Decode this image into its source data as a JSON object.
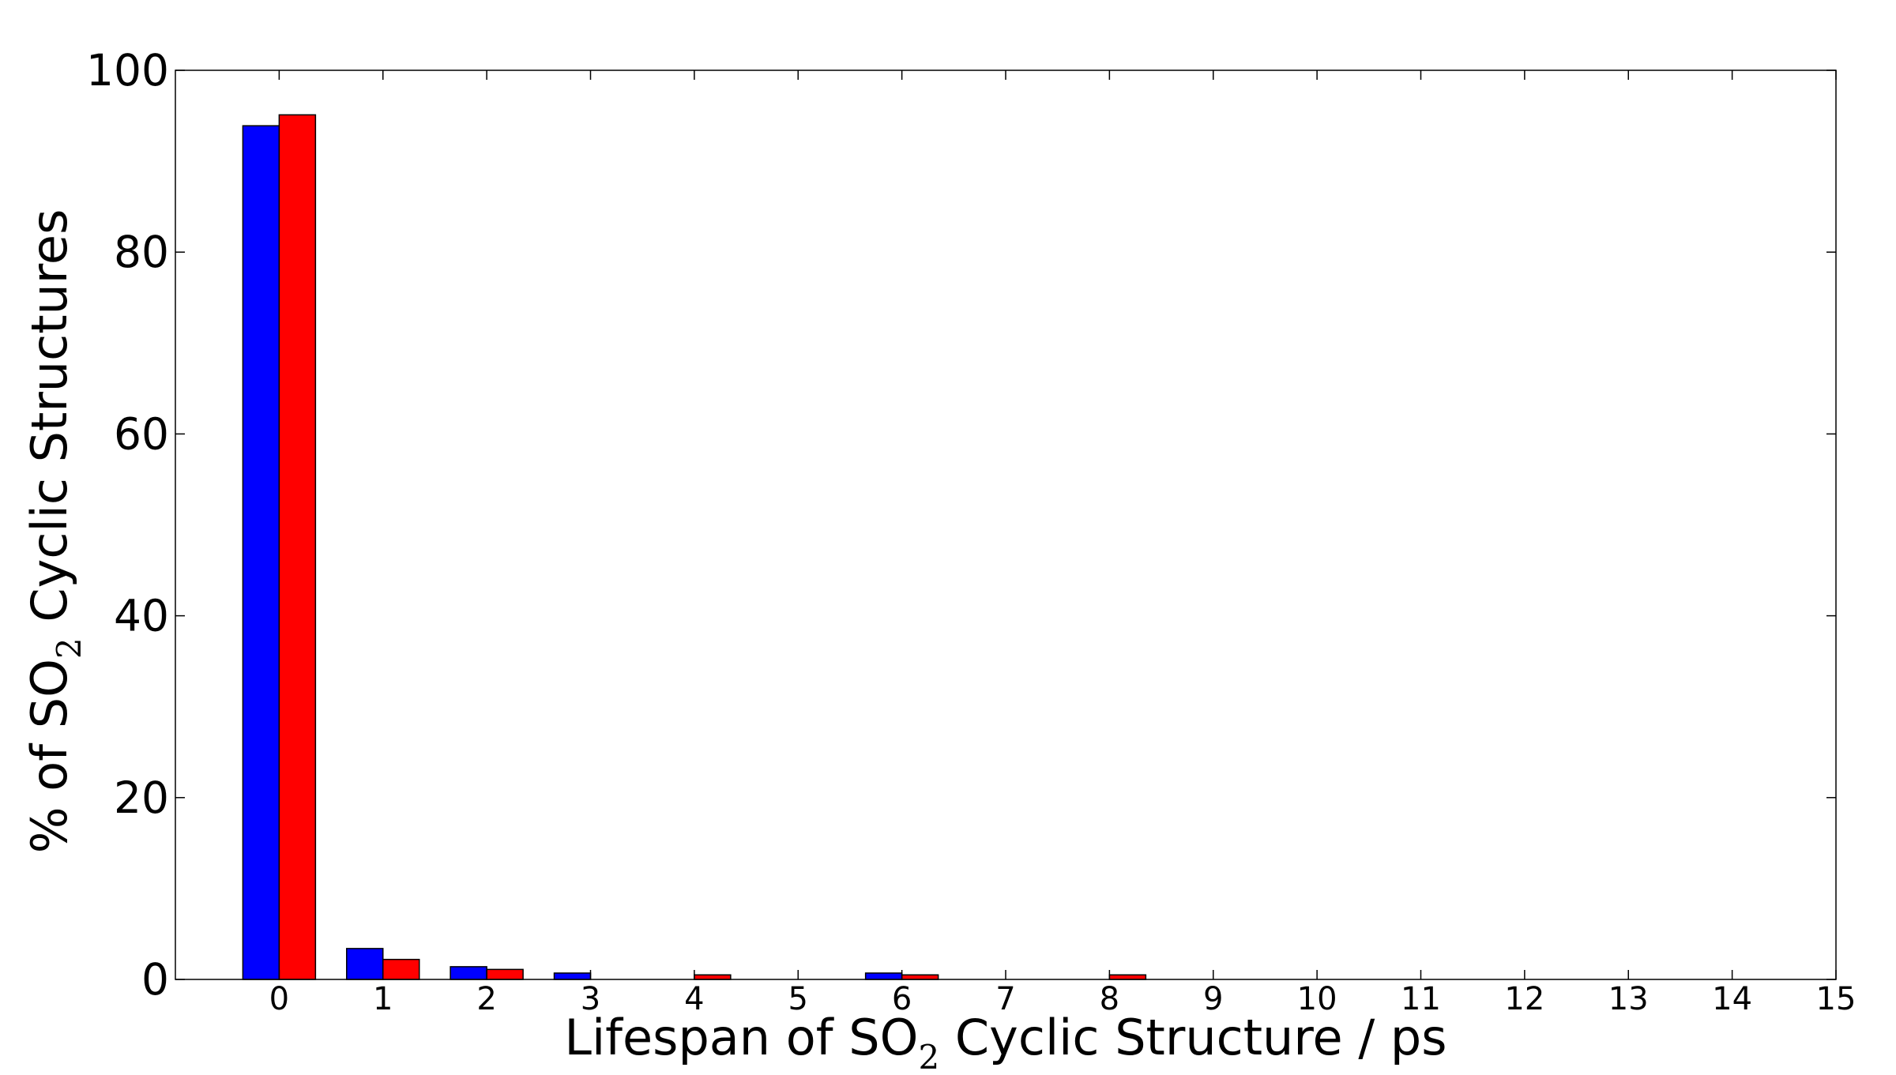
{
  "chart_data": {
    "type": "bar",
    "xlabel": {
      "before": "Lifespan of SO",
      "subscript": "2",
      "after": " Cyclic Structure / ps"
    },
    "ylabel": {
      "before": "% of SO",
      "subscript": "2",
      "after": " Cyclic Structures"
    },
    "xlim": [
      -1,
      15
    ],
    "ylim": [
      0,
      100
    ],
    "x_ticks": [
      0,
      1,
      2,
      3,
      4,
      5,
      6,
      7,
      8,
      9,
      10,
      11,
      12,
      13,
      14,
      15
    ],
    "y_ticks": [
      0,
      20,
      40,
      60,
      80,
      100
    ],
    "bar_width": 0.35,
    "grid": false,
    "legend": "none",
    "categories": [
      0,
      1,
      2,
      3,
      4,
      5,
      6,
      7,
      8,
      9,
      10,
      11,
      12,
      13,
      14
    ],
    "series": [
      {
        "color": "#0000ff",
        "offset": -0.35,
        "values": [
          93.9,
          3.4,
          1.4,
          0.7,
          0,
          0,
          0.7,
          0,
          0,
          0,
          0,
          0,
          0,
          0,
          0
        ]
      },
      {
        "color": "#ff0000",
        "offset": 0,
        "values": [
          95.1,
          2.2,
          1.1,
          0,
          0.5,
          0,
          0.5,
          0,
          0.5,
          0,
          0,
          0,
          0,
          0,
          0
        ]
      }
    ]
  }
}
